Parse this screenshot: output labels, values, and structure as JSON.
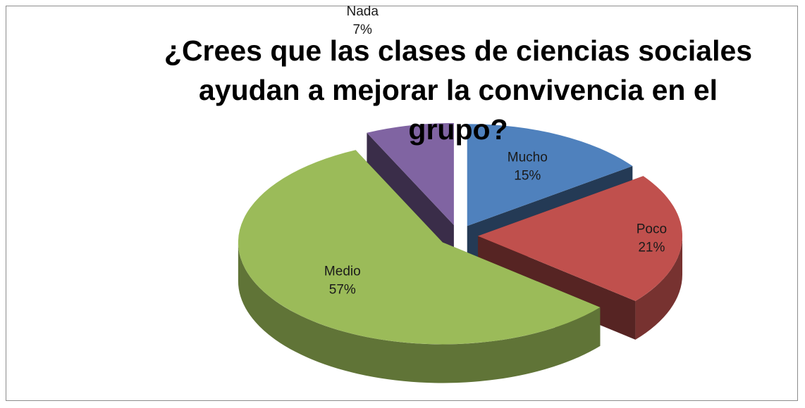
{
  "chart_data": {
    "type": "pie",
    "title": "¿Crees que las clases de ciencias sociales ayudan a mejorar la convivencia en el grupo?",
    "categories": [
      "Mucho",
      "Poco",
      "Medio",
      "Nada"
    ],
    "values": [
      15,
      21,
      57,
      7
    ],
    "value_labels": [
      "15%",
      "21%",
      "57%",
      "7%"
    ],
    "colors": [
      "#4f81bd",
      "#c0504d",
      "#9bbb59",
      "#8064a2"
    ]
  }
}
